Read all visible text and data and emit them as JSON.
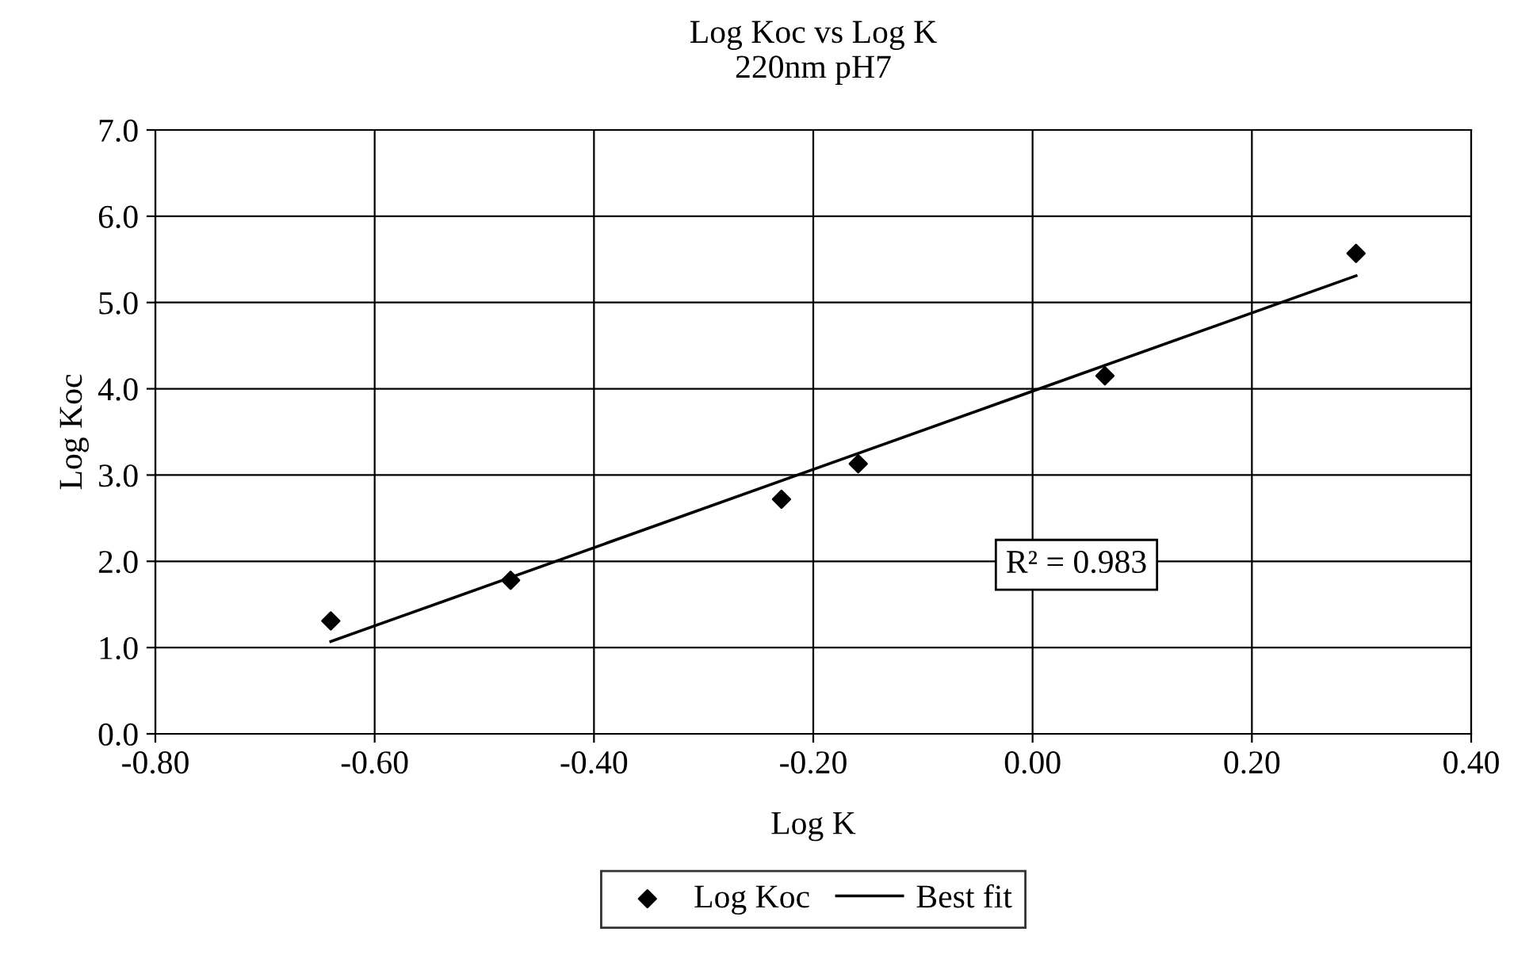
{
  "chart_data": {
    "type": "scatter",
    "title": "Log Koc vs Log K",
    "subtitle": "220nm pH7",
    "xlabel": "Log K",
    "ylabel": "Log Koc",
    "x": [
      -0.64,
      -0.476,
      -0.229,
      -0.159,
      0.066,
      0.295
    ],
    "series": [
      {
        "name": "Log Koc",
        "color": "#000000",
        "marker": "diamond",
        "values": [
          1.31,
          1.78,
          2.72,
          3.13,
          4.15,
          5.57
        ]
      },
      {
        "name": "Best fit",
        "type": "line",
        "color": "#000000",
        "marker": "none",
        "line_style": "solid",
        "x": [
          -0.64,
          0.295
        ],
        "values": [
          1.07,
          5.31
        ]
      }
    ],
    "xlim": [
      -0.8,
      0.4
    ],
    "xticks": [
      {
        "value": -0.8,
        "label": "-0.80"
      },
      {
        "value": -0.6,
        "label": "-0.60"
      },
      {
        "value": -0.4,
        "label": "-0.40"
      },
      {
        "value": -0.2,
        "label": "-0.20"
      },
      {
        "value": 0,
        "label": "0.00"
      },
      {
        "value": 0.2,
        "label": "0.20"
      },
      {
        "value": 0.4,
        "label": "0.40"
      }
    ],
    "ylim": [
      0,
      7
    ],
    "yticks": [
      {
        "value": 0,
        "label": "0.0"
      },
      {
        "value": 1,
        "label": "1.0"
      },
      {
        "value": 2,
        "label": "2.0"
      },
      {
        "value": 3,
        "label": "3.0"
      },
      {
        "value": 4,
        "label": "4.0"
      },
      {
        "value": 5,
        "label": "5.0"
      },
      {
        "value": 6,
        "label": "6.0"
      },
      {
        "value": 7,
        "label": "7.0"
      }
    ],
    "annotations": [
      "R² = 0.983"
    ],
    "grid": true,
    "legend": "bottom"
  }
}
